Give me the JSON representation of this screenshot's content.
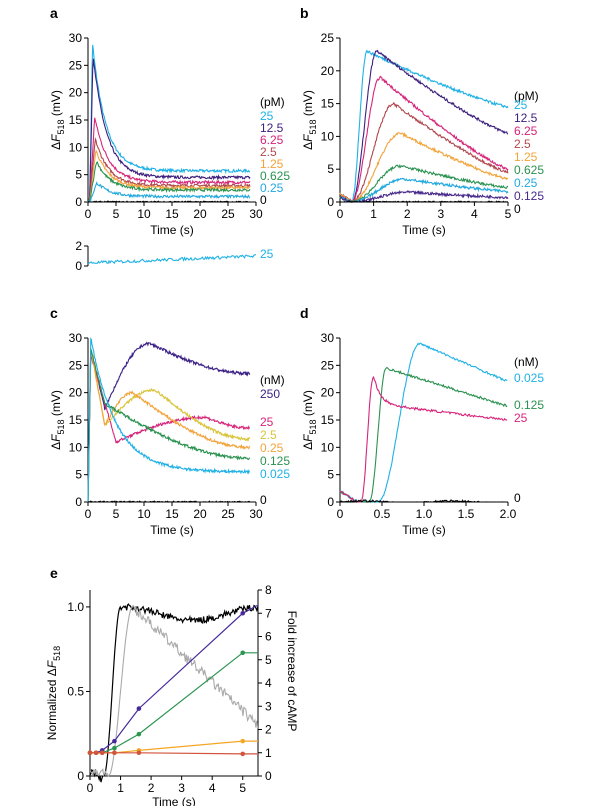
{
  "colors": {
    "c25": "#1fb1e6",
    "c12_5": "#3d1f7e",
    "c6_25": "#d6257a",
    "c2_5": "#b0484e",
    "c1_25": "#f2a33a",
    "c0_625": "#2a9250",
    "c0_25": "#22a8dd",
    "c0_125": "#47298a",
    "c0": "#000000",
    "c250": "#3a1f86",
    "cyellow": "#d8c43a",
    "cgray": "#aaaaaa",
    "cpurple": "#47299b",
    "cgreen": "#2c9550",
    "corange": "#f5a623",
    "cred": "#d3533b"
  },
  "chart_data": [
    {
      "panel": "a",
      "type": "line",
      "xlabel": "Time (s)",
      "ylabel": "ΔF518 (mV)",
      "xlim": [
        0,
        30
      ],
      "ylim": [
        0,
        30
      ],
      "xticks": [
        "0",
        "5",
        "10",
        "15",
        "20",
        "25",
        "30"
      ],
      "yticks": [
        "0",
        "5",
        "10",
        "15",
        "20",
        "25",
        "30"
      ],
      "unit": "(pM)",
      "series": [
        {
          "name": "25",
          "color": "#1fb1e6",
          "peak": 29,
          "tpeak": 0.8,
          "plateau": 5.7
        },
        {
          "name": "12.5",
          "color": "#3d1f7e",
          "peak": 27,
          "tpeak": 0.9,
          "plateau": 4.5
        },
        {
          "name": "6.25",
          "color": "#d6257a",
          "peak": 15.5,
          "tpeak": 1.2,
          "plateau": 3.6
        },
        {
          "name": "2.5",
          "color": "#b0484e",
          "peak": 11.5,
          "tpeak": 1.3,
          "plateau": 3.0
        },
        {
          "name": "1.25",
          "color": "#f2a33a",
          "peak": 9.5,
          "tpeak": 1.4,
          "plateau": 2.6
        },
        {
          "name": "0.625",
          "color": "#2a9250",
          "peak": 7.5,
          "tpeak": 1.5,
          "plateau": 2.2
        },
        {
          "name": "0.25",
          "color": "#22a8dd",
          "peak": 3.5,
          "tpeak": 1.6,
          "plateau": 1.0
        },
        {
          "name": "0",
          "color": "#000000",
          "peak": 0,
          "tpeak": 1,
          "plateau": 0
        }
      ],
      "inset": {
        "ylim": [
          0,
          2
        ],
        "yticks": [
          "0",
          "2"
        ],
        "label": "25",
        "color": "#1fb1e6"
      }
    },
    {
      "panel": "b",
      "type": "line",
      "xlabel": "Time (s)",
      "ylabel": "ΔF518 (mV)",
      "xlim": [
        0,
        5
      ],
      "ylim": [
        0,
        25
      ],
      "xticks": [
        "0",
        "1",
        "2",
        "3",
        "4",
        "5"
      ],
      "yticks": [
        "0",
        "5",
        "10",
        "15",
        "20",
        "25"
      ],
      "unit": "(pM)",
      "series": [
        {
          "name": "25",
          "color": "#1fb1e6",
          "peak": 23,
          "tpeak": 0.8,
          "end": 14.5
        },
        {
          "name": "12.5",
          "color": "#3d1f7e",
          "peak": 23,
          "tpeak": 1.1,
          "end": 10.5
        },
        {
          "name": "6.25",
          "color": "#d6257a",
          "peak": 19,
          "tpeak": 1.2,
          "end": 5.0
        },
        {
          "name": "2.5",
          "color": "#b0484e",
          "peak": 15,
          "tpeak": 1.6,
          "end": 4.5
        },
        {
          "name": "1.25",
          "color": "#f2a33a",
          "peak": 10.5,
          "tpeak": 1.8,
          "end": 3.5
        },
        {
          "name": "0.625",
          "color": "#2a9250",
          "peak": 5.5,
          "tpeak": 1.8,
          "end": 2.2
        },
        {
          "name": "0.25",
          "color": "#22a8dd",
          "peak": 3.5,
          "tpeak": 1.9,
          "end": 1.6
        },
        {
          "name": "0.125",
          "color": "#47298a",
          "peak": 1.5,
          "tpeak": 2.0,
          "end": 0.7
        },
        {
          "name": "0",
          "color": "#000000",
          "peak": 0,
          "tpeak": 1,
          "end": 0
        }
      ]
    },
    {
      "panel": "c",
      "type": "line",
      "xlabel": "Time (s)",
      "ylabel": "ΔF518 (mV)",
      "xlim": [
        0,
        30
      ],
      "ylim": [
        0,
        30
      ],
      "xticks": [
        "0",
        "5",
        "10",
        "15",
        "20",
        "25",
        "30"
      ],
      "yticks": [
        "0",
        "5",
        "10",
        "15",
        "20",
        "25",
        "30"
      ],
      "unit": "(nM)",
      "series": [
        {
          "name": "250",
          "color": "#3a1f86",
          "init": 28,
          "dip": 17,
          "tdip": 3,
          "peak": 29,
          "tpeak": 11,
          "end": 23.5
        },
        {
          "name": "25",
          "color": "#d6257a",
          "init": 27,
          "dip": 11,
          "tdip": 5,
          "peak": 15.5,
          "tpeak": 21,
          "end": 13.5
        },
        {
          "name": "2.5",
          "color": "#d8c43a",
          "init": 28,
          "dip": 14,
          "tdip": 3,
          "peak": 20.5,
          "tpeak": 12,
          "end": 11.5
        },
        {
          "name": "0.25",
          "color": "#f2a33a",
          "init": 28,
          "dip": 14,
          "tdip": 3,
          "peak": 20,
          "tpeak": 8,
          "end": 10
        },
        {
          "name": "0.125",
          "color": "#2a9250",
          "init": 28,
          "dip": 18,
          "tdip": 3,
          "peak": 18,
          "tpeak": 3,
          "end": 8
        },
        {
          "name": "0.025",
          "color": "#1fb1e6",
          "init": 29,
          "dip": 5.5,
          "tdip": 28,
          "peak": 29,
          "tpeak": 0.8,
          "end": 5.5
        },
        {
          "name": "0",
          "color": "#000000",
          "init": 0,
          "dip": 0,
          "tdip": 1,
          "peak": 0,
          "tpeak": 1,
          "end": 0
        }
      ]
    },
    {
      "panel": "d",
      "type": "line",
      "xlabel": "Time (s)",
      "ylabel": "ΔF518 (mV)",
      "xlim": [
        0,
        2.0
      ],
      "ylim": [
        0,
        30
      ],
      "xticks": [
        "0",
        "0.5",
        "1.0",
        "1.5",
        "2.0"
      ],
      "yticks": [
        "0",
        "5",
        "10",
        "15",
        "20",
        "25",
        "30"
      ],
      "unit": "(nM)",
      "series": [
        {
          "name": "0.025",
          "color": "#1fb1e6",
          "rise": 0.45,
          "peak": 29,
          "tpeak": 0.95,
          "end": 22
        },
        {
          "name": "0.125",
          "color": "#2a9250",
          "rise": 0.35,
          "peak": 24.5,
          "tpeak": 0.55,
          "end": 17.5
        },
        {
          "name": "25",
          "color": "#d6257a",
          "rise": 0.25,
          "peak": 23,
          "tpeak": 0.4,
          "end": 15
        },
        {
          "name": "0",
          "color": "#000000",
          "rise": 0,
          "peak": 0,
          "tpeak": 1,
          "end": 0
        }
      ]
    },
    {
      "panel": "e",
      "type": "line",
      "xlabel": "Time (s)",
      "ylabel": "Normalized ΔF518",
      "y2label": "Fold increase of cAMP",
      "xlim": [
        0,
        5.5
      ],
      "ylim": [
        0,
        1.1
      ],
      "y2lim": [
        0,
        8
      ],
      "xticks": [
        "0",
        "1",
        "2",
        "3",
        "4",
        "5"
      ],
      "yticks": [
        "0",
        "0.5",
        "1.0"
      ],
      "y2ticks": [
        "0",
        "1",
        "2",
        "3",
        "4",
        "5",
        "6",
        "7",
        "8"
      ],
      "traces": [
        {
          "name": "black",
          "color": "#000000"
        },
        {
          "name": "gray",
          "color": "#aaaaaa"
        }
      ],
      "points": [
        {
          "name": "purple",
          "color": "#47299b",
          "x": [
            0,
            0.2,
            0.4,
            0.8,
            1.6,
            5
          ],
          "y": [
            1.0,
            1.0,
            1.1,
            1.5,
            2.9,
            7.0
          ]
        },
        {
          "name": "green",
          "color": "#2c9550",
          "x": [
            0,
            0.2,
            0.4,
            0.8,
            1.6,
            5
          ],
          "y": [
            1.0,
            1.0,
            1.0,
            1.2,
            1.8,
            5.3
          ]
        },
        {
          "name": "orange",
          "color": "#f5a623",
          "x": [
            0,
            0.2,
            0.4,
            0.8,
            1.6,
            5
          ],
          "y": [
            1.0,
            1.0,
            1.0,
            1.0,
            1.1,
            1.5
          ]
        },
        {
          "name": "red",
          "color": "#d3533b",
          "x": [
            0,
            0.2,
            0.4,
            0.8,
            1.6,
            5
          ],
          "y": [
            1.0,
            1.0,
            1.0,
            1.0,
            1.0,
            0.95
          ]
        }
      ]
    }
  ],
  "labels": {
    "a": "a",
    "b": "b",
    "c": "c",
    "d": "d",
    "e": "e",
    "time": "Time (s)",
    "delta": "Δ",
    "F": "F",
    "sub": "518",
    "mv": "(mV)",
    "normalized": "Normalized Δ",
    "fold": "Fold increase of cAMP"
  }
}
